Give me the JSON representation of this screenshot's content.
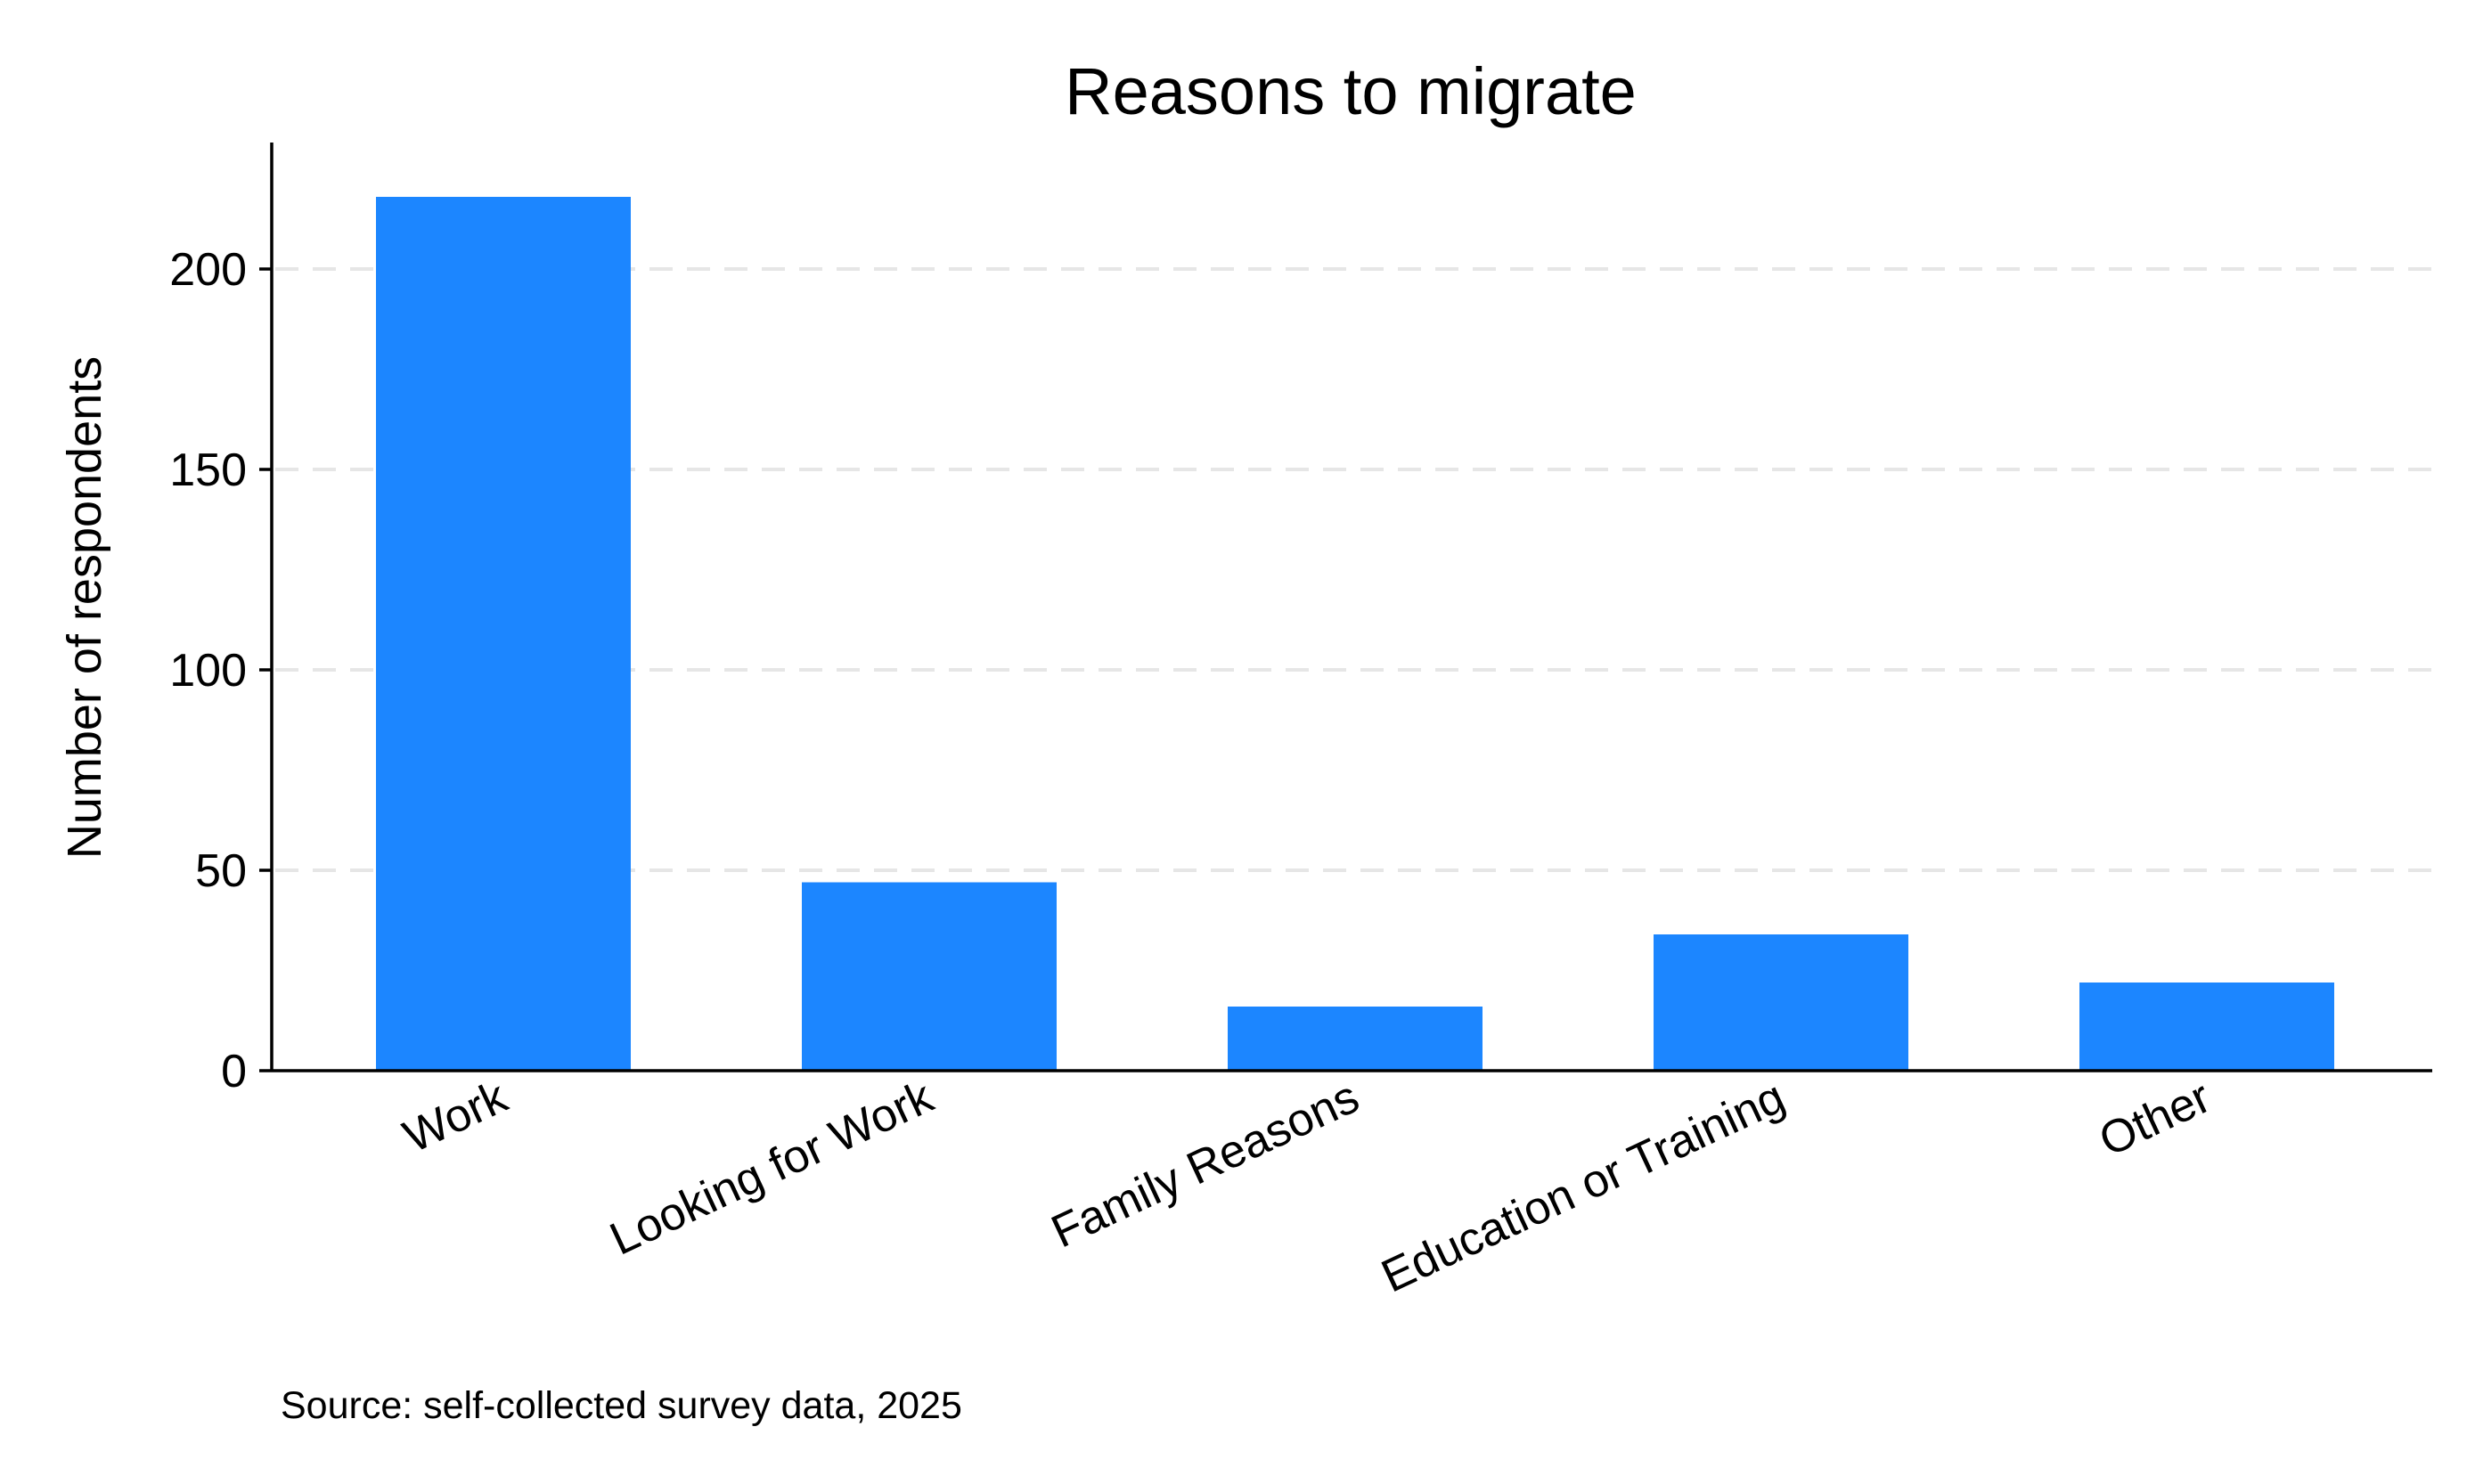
{
  "chart_data": {
    "type": "bar",
    "title": "Reasons to migrate",
    "xlabel": "",
    "ylabel": "Number of respondents",
    "categories": [
      "Work",
      "Looking for Work",
      "Family Reasons",
      "Education or Training",
      "Other"
    ],
    "values": [
      218,
      47,
      16,
      34,
      22
    ],
    "ylim": [
      0,
      230
    ],
    "yticks": [
      0,
      50,
      100,
      150,
      200
    ],
    "grid": true,
    "legend": false,
    "bar_color": "#1c86ff",
    "note": "Source: self-collected survey data, 2025"
  }
}
